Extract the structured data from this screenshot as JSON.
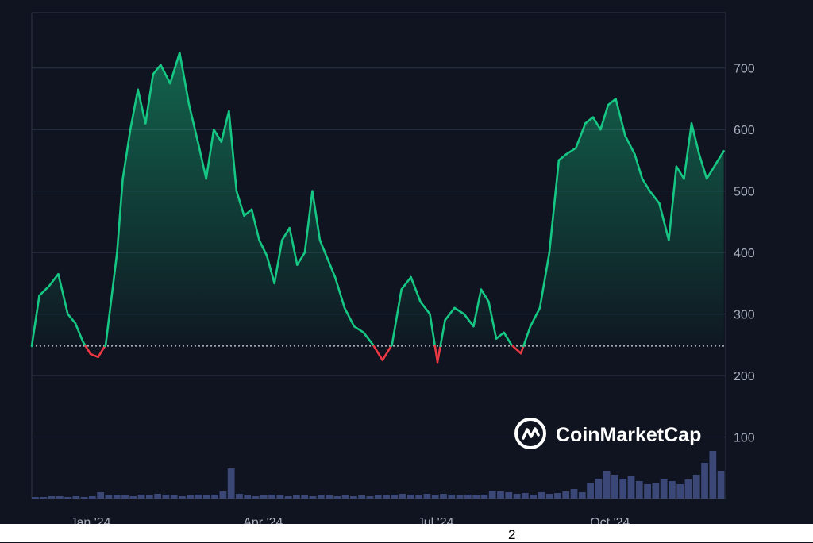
{
  "chart_data": {
    "type": "area",
    "title": "",
    "xlabel": "",
    "ylabel": "",
    "ylim": [
      0,
      790
    ],
    "y_ticks": [
      "100",
      "200",
      "300",
      "400",
      "500",
      "600",
      "700"
    ],
    "x_tick_labels": [
      "Jan '24",
      "Apr '24",
      "Jul '24",
      "Oct '24"
    ],
    "x_range": [
      "2023-12-01",
      "2024-12-01"
    ],
    "x_ticks": [
      "2024-01-01",
      "2024-04-01",
      "2024-07-01",
      "2024-10-01"
    ],
    "baseline": 248,
    "colors": {
      "up": "#16c784",
      "down": "#ea3943",
      "volume": "#3a4777",
      "grid": "#2c3345",
      "background": "#0f1420"
    },
    "series": [
      {
        "x": [
          "2023-12-01",
          "2023-12-05",
          "2023-12-10",
          "2023-12-15",
          "2023-12-20",
          "2023-12-24",
          "2023-12-28",
          "2024-01-01",
          "2024-01-05",
          "2024-01-09",
          "2024-01-12",
          "2024-01-15",
          "2024-01-18",
          "2024-01-22",
          "2024-01-26",
          "2024-01-30",
          "2024-02-03",
          "2024-02-07",
          "2024-02-12",
          "2024-02-17",
          "2024-02-22",
          "2024-02-27",
          "2024-03-02",
          "2024-03-06",
          "2024-03-10",
          "2024-03-14",
          "2024-03-18",
          "2024-03-22",
          "2024-03-26",
          "2024-03-30",
          "2024-04-03",
          "2024-04-07",
          "2024-04-11",
          "2024-04-15",
          "2024-04-19",
          "2024-04-23",
          "2024-04-27",
          "2024-05-01",
          "2024-05-05",
          "2024-05-09",
          "2024-05-14",
          "2024-05-19",
          "2024-05-24",
          "2024-05-29",
          "2024-06-03",
          "2024-06-08",
          "2024-06-13",
          "2024-06-18",
          "2024-06-23",
          "2024-06-28",
          "2024-07-02",
          "2024-07-06",
          "2024-07-11",
          "2024-07-16",
          "2024-07-21",
          "2024-07-25",
          "2024-07-29",
          "2024-08-02",
          "2024-08-06",
          "2024-08-10",
          "2024-08-15",
          "2024-08-20",
          "2024-08-25",
          "2024-08-30",
          "2024-09-04",
          "2024-09-08",
          "2024-09-13",
          "2024-09-18",
          "2024-09-22",
          "2024-09-26",
          "2024-09-30",
          "2024-10-04",
          "2024-10-09",
          "2024-10-14",
          "2024-10-18",
          "2024-10-22",
          "2024-10-27",
          "2024-11-01",
          "2024-11-05",
          "2024-11-09",
          "2024-11-13",
          "2024-11-17",
          "2024-11-21",
          "2024-11-25",
          "2024-11-30"
        ],
        "values": [
          248,
          330,
          345,
          365,
          300,
          285,
          255,
          235,
          230,
          250,
          325,
          400,
          520,
          600,
          665,
          610,
          690,
          705,
          675,
          725,
          640,
          575,
          520,
          600,
          580,
          630,
          500,
          460,
          470,
          420,
          395,
          350,
          420,
          440,
          380,
          400,
          500,
          420,
          390,
          360,
          310,
          280,
          270,
          250,
          225,
          250,
          340,
          360,
          320,
          300,
          222,
          290,
          310,
          300,
          280,
          340,
          320,
          260,
          270,
          250,
          236,
          280,
          310,
          400,
          550,
          560,
          570,
          610,
          620,
          600,
          640,
          650,
          590,
          560,
          520,
          500,
          480,
          420,
          540,
          520,
          610,
          560,
          520,
          540,
          565
        ]
      }
    ],
    "volume": [
      2,
      2,
      3,
      3,
      2,
      3,
      2,
      3,
      8,
      4,
      5,
      4,
      3,
      5,
      4,
      6,
      5,
      4,
      3,
      4,
      5,
      4,
      5,
      9,
      38,
      6,
      4,
      3,
      4,
      5,
      4,
      3,
      4,
      4,
      3,
      5,
      4,
      3,
      4,
      3,
      4,
      3,
      5,
      4,
      5,
      6,
      5,
      4,
      6,
      5,
      6,
      5,
      4,
      5,
      4,
      5,
      10,
      9,
      8,
      6,
      7,
      5,
      8,
      6,
      7,
      9,
      12,
      8,
      20,
      25,
      35,
      30,
      25,
      28,
      22,
      18,
      20,
      25,
      22,
      18,
      24,
      30,
      45,
      60,
      35
    ]
  },
  "watermark": {
    "brand": "CoinMarketCap",
    "icon": "coinmarketcap-logo-icon"
  },
  "page_number": "2"
}
